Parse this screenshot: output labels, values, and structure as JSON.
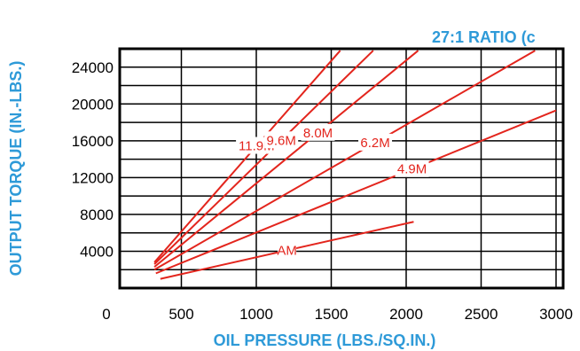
{
  "chart_data": {
    "type": "line",
    "title": "27:1 RATIO (c",
    "xlabel": "OIL PRESSURE (LBS./SQ.IN.)",
    "ylabel": "OUTPUT TORQUE (IN.-LBS.)",
    "xlim": [
      0,
      3000
    ],
    "ylim": [
      0,
      26000
    ],
    "x_ticks": [
      0,
      500,
      1000,
      1500,
      2000,
      2500,
      3000
    ],
    "y_ticks": [
      4000,
      8000,
      12000,
      16000,
      20000,
      24000
    ],
    "grid": true,
    "series": [
      {
        "name": "11.9M",
        "x": [
          320,
          1560
        ],
        "y": [
          2800,
          25800
        ]
      },
      {
        "name": "9.6M",
        "x": [
          320,
          1780
        ],
        "y": [
          2600,
          25800
        ]
      },
      {
        "name": "8.0M",
        "x": [
          320,
          2080
        ],
        "y": [
          2300,
          25800
        ]
      },
      {
        "name": "6.2M",
        "x": [
          320,
          2860
        ],
        "y": [
          2000,
          25800
        ]
      },
      {
        "name": "4.9M",
        "x": [
          330,
          3000
        ],
        "y": [
          1600,
          19300
        ]
      },
      {
        "name": "AM",
        "x": [
          360,
          2050
        ],
        "y": [
          1000,
          7200
        ]
      }
    ],
    "colors": {
      "series": "#e3251d",
      "axis_titles": "#2e9ad8",
      "grid": "#000000"
    }
  }
}
